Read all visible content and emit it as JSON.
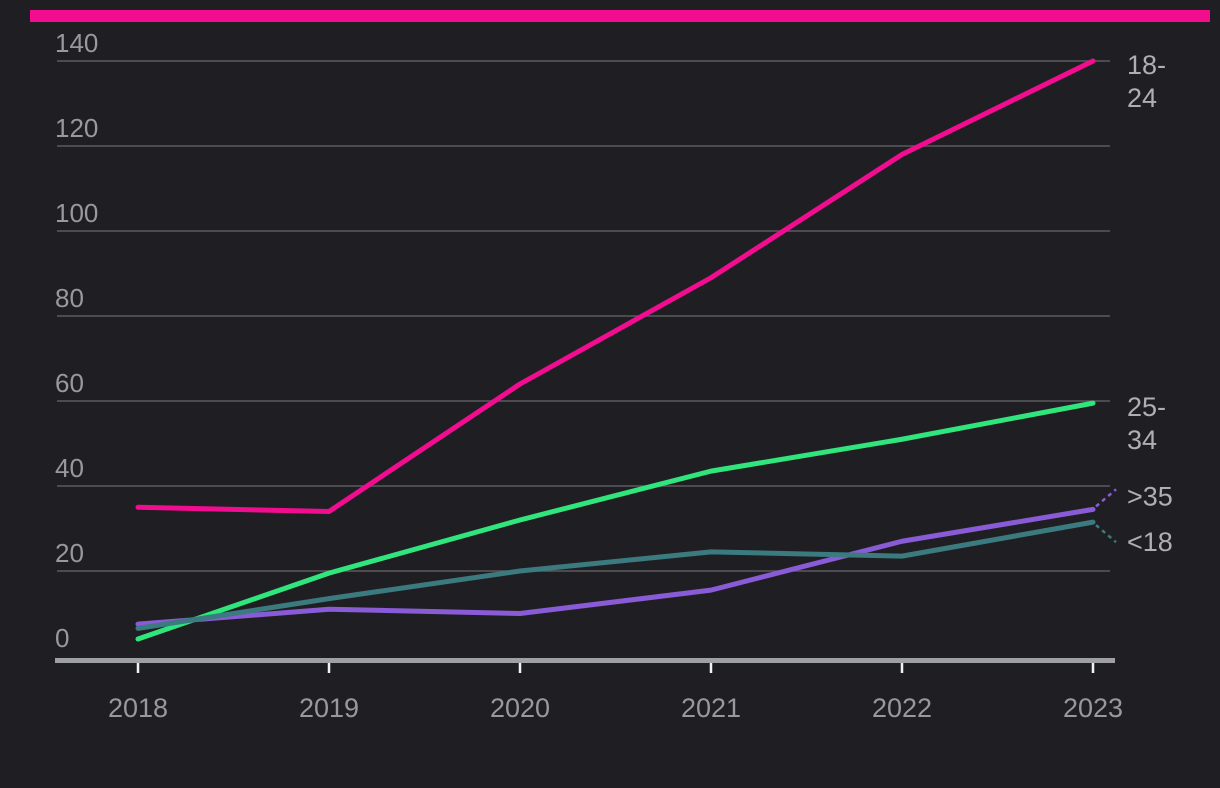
{
  "colors": {
    "background": "#1f1f23",
    "accent_bar": "#f20d90",
    "grid": "#5a5a60",
    "axis": "#9fa0a3",
    "tick_mark": "#f2f2f2",
    "axis_label": "#98989d",
    "series_label": "#aeaeb4"
  },
  "chart_data": {
    "type": "line",
    "title": "",
    "xlabel": "",
    "ylabel": "",
    "x": [
      2018,
      2019,
      2020,
      2021,
      2022,
      2023
    ],
    "series": [
      {
        "name": "18-24",
        "label_lines": [
          "18-",
          "24"
        ],
        "color": "#f20d90",
        "values": [
          35,
          34,
          64,
          89,
          118,
          140
        ]
      },
      {
        "name": "25-34",
        "label_lines": [
          "25-",
          "34"
        ],
        "color": "#2fe57c",
        "values": [
          4,
          19.5,
          32,
          43.5,
          51,
          59.5
        ]
      },
      {
        "name": ">35",
        "label_lines": [
          ">35"
        ],
        "color": "#8a5bd6",
        "values": [
          7.5,
          11,
          10,
          15.5,
          27,
          34.5
        ]
      },
      {
        "name": "<18",
        "label_lines": [
          "<18"
        ],
        "color": "#3b7a7e",
        "values": [
          6.5,
          13.5,
          20,
          24.5,
          23.5,
          31.5
        ]
      }
    ],
    "y_ticks": [
      0,
      20,
      40,
      60,
      80,
      100,
      120,
      140
    ],
    "ylim": [
      0,
      140
    ],
    "grid": true,
    "legend_position": "right-end-labels"
  }
}
